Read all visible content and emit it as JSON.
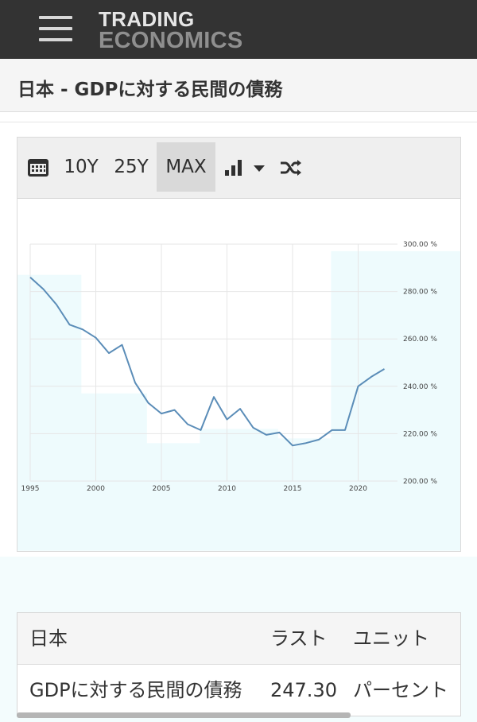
{
  "header": {
    "logo_line1": "TRADING",
    "logo_line2": "ECONOMICS"
  },
  "page": {
    "title": "日本 - GDPに対する民間の債務"
  },
  "toolbar": {
    "range_10y": "10Y",
    "range_25y": "25Y",
    "range_max": "MAX",
    "active_range": "MAX",
    "icons": [
      "calendar-icon",
      "bar-chart-icon",
      "dropdown-caret-icon",
      "shuffle-icon"
    ]
  },
  "chart_data": {
    "type": "line",
    "title": "",
    "xlabel": "",
    "ylabel": "",
    "x_ticks": [
      "1995",
      "2000",
      "2005",
      "2010",
      "2015",
      "2020"
    ],
    "y_ticks": [
      "200.00 %",
      "220.00 %",
      "240.00 %",
      "260.00 %",
      "280.00 %",
      "300.00 %"
    ],
    "xlim": [
      1995,
      2023
    ],
    "ylim": [
      200,
      300
    ],
    "y_axis_position": "right",
    "grid": true,
    "line_color": "#5b8db8",
    "band_color": "#eefbfd",
    "series": [
      {
        "x": [
          1995,
          1996,
          1997,
          1998,
          1999,
          2000,
          2001,
          2002,
          2003,
          2004,
          2005,
          2006,
          2007,
          2008,
          2009,
          2010,
          2011,
          2012,
          2013,
          2014,
          2015,
          2016,
          2017,
          2018,
          2019,
          2020,
          2021,
          2022
        ],
        "values": [
          286,
          281,
          274.5,
          266,
          264,
          260.5,
          254,
          257.5,
          241.5,
          233,
          228.5,
          230,
          224,
          221.5,
          235.5,
          226,
          230.5,
          222.5,
          219.5,
          220.5,
          215,
          216,
          217.5,
          221.5,
          221.5,
          240,
          244,
          247.3
        ]
      }
    ]
  },
  "table": {
    "headers": [
      "日本",
      "ラスト",
      "ユニット"
    ],
    "rows": [
      [
        "GDPに対する民間の債務",
        "247.30",
        "パーセント"
      ]
    ]
  }
}
